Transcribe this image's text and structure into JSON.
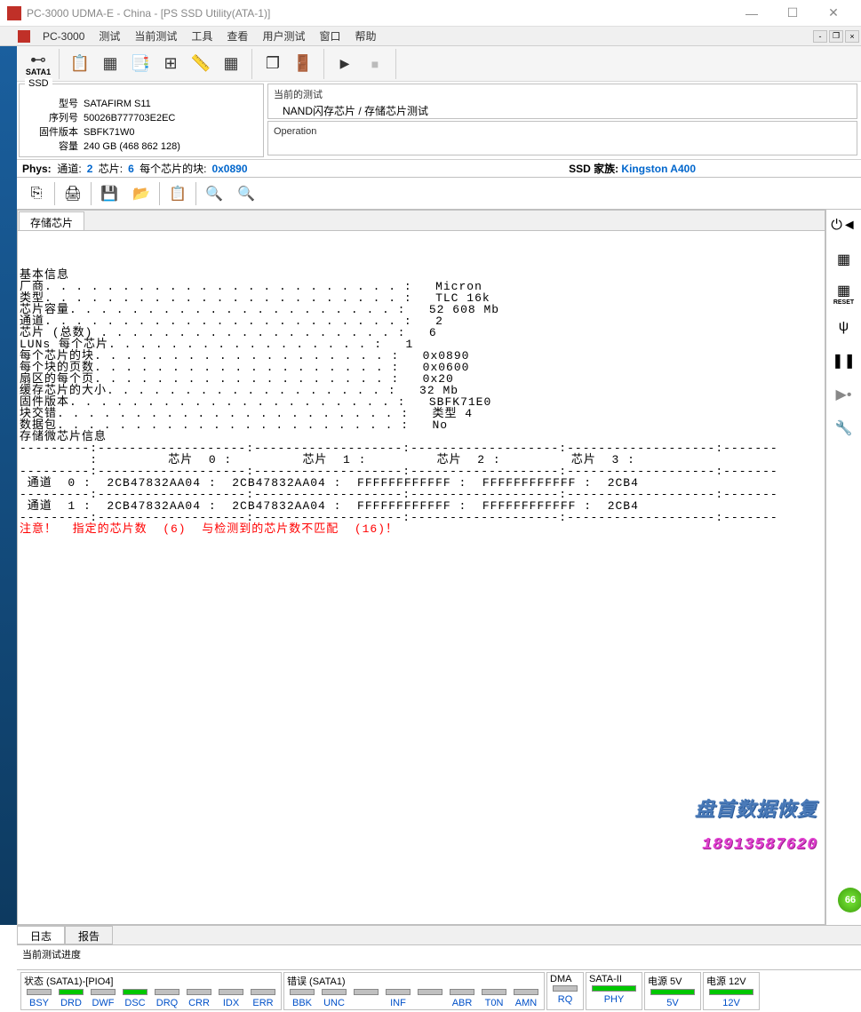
{
  "window": {
    "title": "PC-3000 UDMA-E - China - [PS SSD Utility(ATA-1)]",
    "app_name": "PC-3000"
  },
  "menu": [
    "测试",
    "当前测试",
    "工具",
    "查看",
    "用户测试",
    "窗口",
    "帮助"
  ],
  "ssd_info": {
    "box_label": "SSD",
    "model_label": "型号",
    "model": "SATAFIRM   S11",
    "serial_label": "序列号",
    "serial": "50026B777703E2EC",
    "fw_label": "固件版本",
    "fw": "SBFK71W0",
    "capacity_label": "容量",
    "capacity": "240 GB (468 862 128)"
  },
  "current_test": {
    "label": "当前的测试",
    "content": "NAND闪存芯片 / 存储芯片测试"
  },
  "operation": {
    "label": "Operation"
  },
  "phys": {
    "label": "Phys:",
    "channels_label": "通道:",
    "channels": "2",
    "chips_label": "芯片:",
    "chips": "6",
    "blocks_label": "每个芯片的块:",
    "blocks": "0x0890",
    "family_label": "SSD 家族:",
    "family": "Kingston A400"
  },
  "tab": "存储芯片",
  "output_lines": [
    "基本信息",
    "厂商. . . . . . . . . . . . . . . . . . . . . . . :   Micron",
    "类型. . . . . . . . . . . . . . . . . . . . . . . :   TLC 16k",
    "芯片容量. . . . . . . . . . . . . . . . . . . . . :   52 608 Mb",
    "通道. . . . . . . . . . . . . . . . . . . . . . . :   2",
    "芯片 (总数) . . . . . . . . . . . . . . . . . . . :   6",
    "LUNs 每个芯片. . . . . . . . . . . . . . . . . :   1",
    "每个芯片的块. . . . . . . . . . . . . . . . . . . :   0x0890",
    "每个块的页数. . . . . . . . . . . . . . . . . . . :   0x0600",
    "扇区的每个页. . . . . . . . . . . . . . . . . . . :   0x20",
    "缓存芯片的大小. . . . . . . . . . . . . . . . . . :   32 Mb",
    "固件版本. . . . . . . . . . . . . . . . . . . . . :   SBFK71E0",
    "块交错. . . . . . . . . . . . . . . . . . . . . . :   类型 4",
    "数据包. . . . . . . . . . . . . . . . . . . . . . :   No",
    "",
    "存储微芯片信息",
    "---------:-------------------:-------------------:-------------------:-------------------:-------",
    "         :         芯片  0 :         芯片  1 :         芯片  2 :         芯片  3 :       ",
    "---------:-------------------:-------------------:-------------------:-------------------:-------",
    " 通道  0 :  2CB47832AA04 :  2CB47832AA04 :  FFFFFFFFFFFF :  FFFFFFFFFFFF :  2CB4",
    "---------:-------------------:-------------------:-------------------:-------------------:-------",
    " 通道  1 :  2CB47832AA04 :  2CB47832AA04 :  FFFFFFFFFFFF :  FFFFFFFFFFFF :  2CB4",
    "---------:-------------------:-------------------:-------------------:-------------------:-------"
  ],
  "warning": "注意！  指定的芯片数  (6)  与检测到的芯片数不匹配  (16)！",
  "watermark": {
    "line1": "盘首数据恢复",
    "line2": "18913587620"
  },
  "bottom_tabs": [
    "日志",
    "报告"
  ],
  "progress_label": "当前测试进度",
  "status": {
    "state": {
      "label": "状态 (SATA1)-[PIO4]",
      "cells": [
        {
          "name": "BSY",
          "on": false
        },
        {
          "name": "DRD",
          "on": true
        },
        {
          "name": "DWF",
          "on": false
        },
        {
          "name": "DSC",
          "on": true
        },
        {
          "name": "DRQ",
          "on": false
        },
        {
          "name": "CRR",
          "on": false
        },
        {
          "name": "IDX",
          "on": false
        },
        {
          "name": "ERR",
          "on": false
        }
      ]
    },
    "error": {
      "label": "错误 (SATA1)",
      "cells": [
        {
          "name": "BBK",
          "on": false
        },
        {
          "name": "UNC",
          "on": false
        },
        {
          "name": "",
          "on": false
        },
        {
          "name": "INF",
          "on": false
        },
        {
          "name": "",
          "on": false
        },
        {
          "name": "ABR",
          "on": false
        },
        {
          "name": "T0N",
          "on": false
        },
        {
          "name": "AMN",
          "on": false
        }
      ]
    },
    "dma": {
      "label": "DMA",
      "cells": [
        {
          "name": "RQ",
          "on": false
        }
      ]
    },
    "sata2": {
      "label": "SATA-II",
      "cells": [
        {
          "name": "PHY",
          "on": true
        }
      ]
    },
    "pwr5": {
      "label": "电源 5V",
      "cells": [
        {
          "name": "5V",
          "on": true
        }
      ]
    },
    "pwr12": {
      "label": "电源 12V",
      "cells": [
        {
          "name": "12V",
          "on": true
        }
      ]
    }
  },
  "badge": "66"
}
